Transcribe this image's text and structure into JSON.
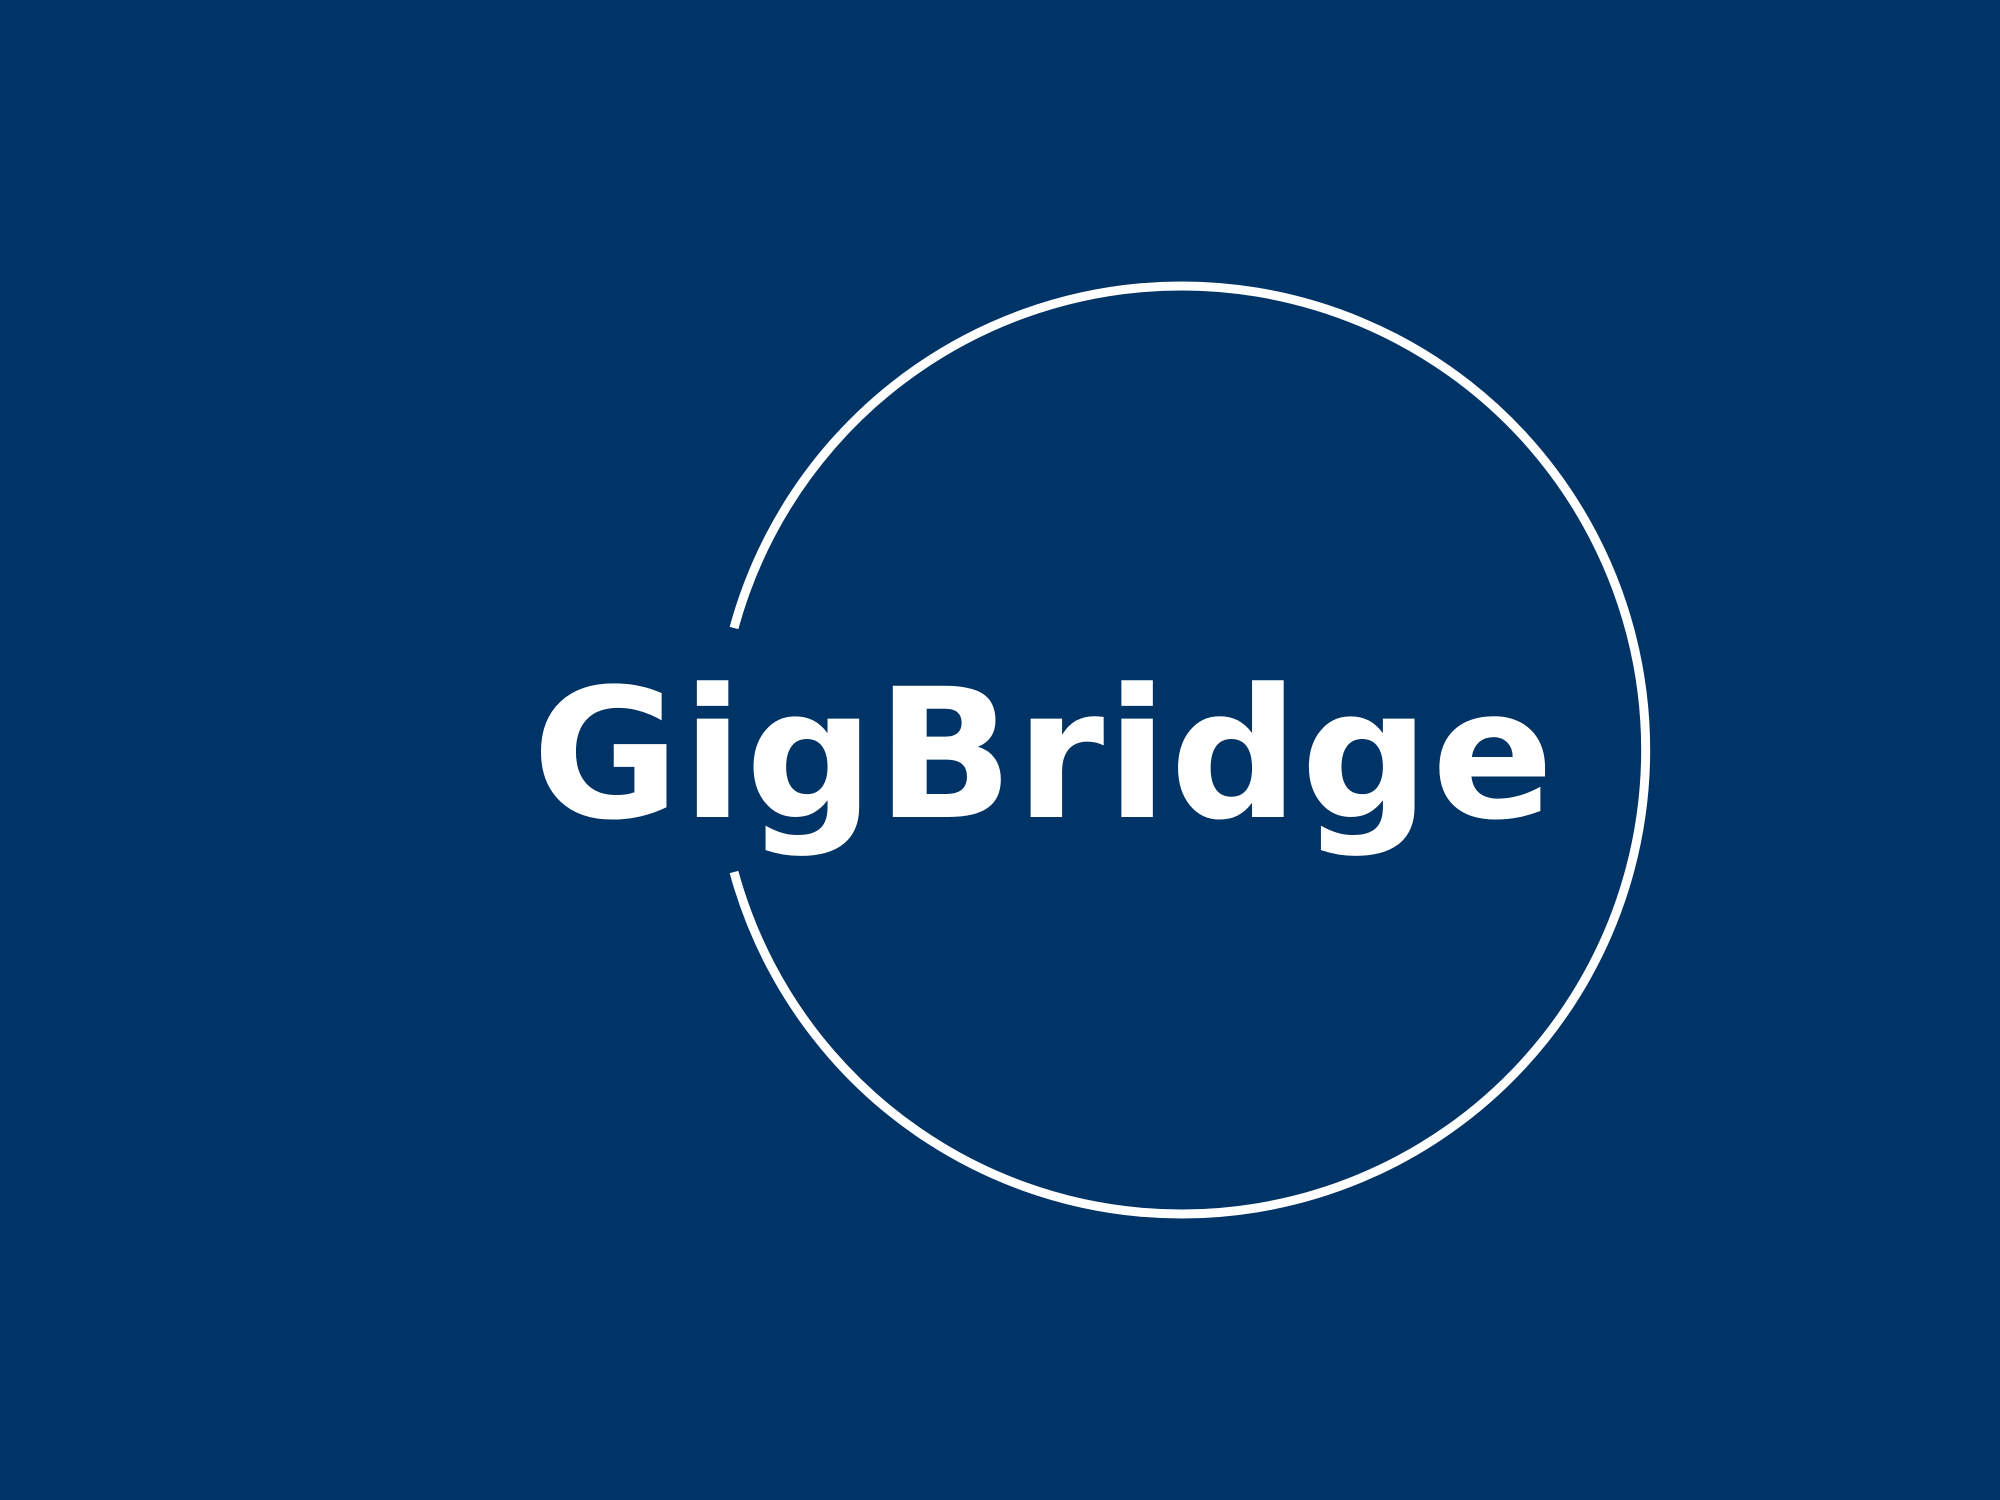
{
  "brand": {
    "name": "GigBridge"
  },
  "colors": {
    "background": "#003366",
    "foreground": "#FFFFFF"
  }
}
